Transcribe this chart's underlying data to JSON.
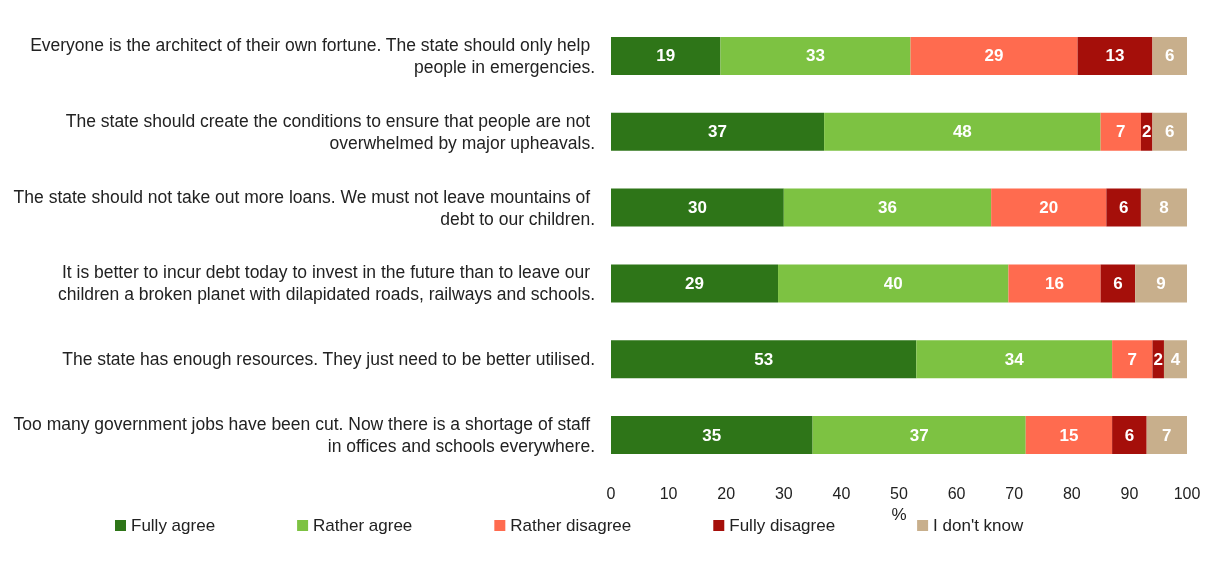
{
  "chart_data": {
    "type": "bar",
    "orientation": "horizontal",
    "stacked": true,
    "xlabel": "%",
    "xlim": [
      0,
      100
    ],
    "xticks": [
      0,
      10,
      20,
      30,
      40,
      50,
      60,
      70,
      80,
      90,
      100
    ],
    "grid": false,
    "legend": "bottom",
    "data_labels": true,
    "categories": [
      "Everyone is the architect of their own fortune. The state should only help people in emergencies.",
      "The state should create the conditions to ensure that people are not overwhelmed by major upheavals.",
      "The state should not take out more loans. We must not leave mountains of debt to our children.",
      "It is better to incur debt today to invest in the future than to leave our children a broken planet with dilapidated roads, railways and schools.",
      "The state has enough resources. They just need to be better utilised.",
      "Too many government jobs have been cut. Now there is a shortage of staff in offices and schools everywhere."
    ],
    "series": [
      {
        "name": "Fully agree",
        "color": "#2e7518",
        "values": [
          19,
          37,
          30,
          29,
          53,
          35
        ]
      },
      {
        "name": "Rather agree",
        "color": "#7dc242",
        "values": [
          33,
          48,
          36,
          40,
          34,
          37
        ]
      },
      {
        "name": "Rather disagree",
        "color": "#ff6b4f",
        "values": [
          29,
          7,
          20,
          16,
          7,
          15
        ]
      },
      {
        "name": "Fully disagree",
        "color": "#a50f0a",
        "values": [
          13,
          2,
          6,
          6,
          2,
          6
        ]
      },
      {
        "name": "I don't know",
        "color": "#c8af8c",
        "values": [
          6,
          6,
          8,
          9,
          4,
          7
        ]
      }
    ]
  }
}
